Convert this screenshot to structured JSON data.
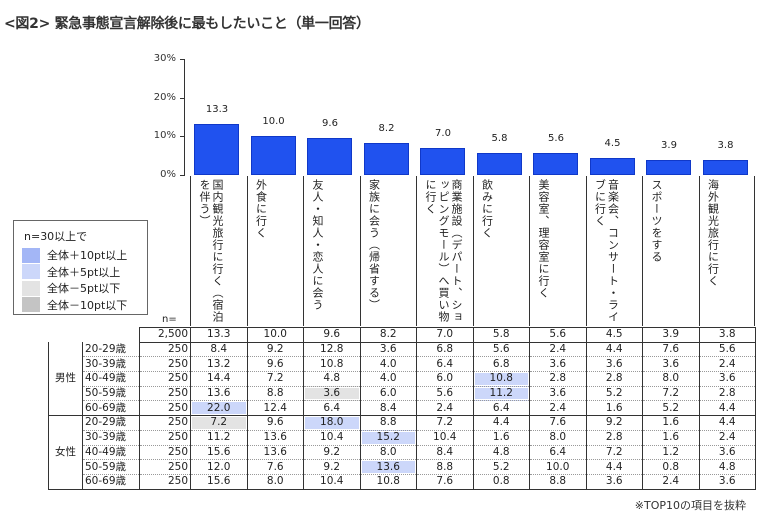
{
  "title": "<図2> 緊急事態宣言解除後に最もしたいこと（単一回答）",
  "note": "※TOP10の項目を抜粋",
  "legend": {
    "title": "n=30以上で",
    "items": [
      {
        "label": "全体＋10pt以上",
        "color": "#a3b6f6"
      },
      {
        "label": "全体＋5pt以上",
        "color": "#ccd7fa"
      },
      {
        "label": "全体－5pt以下",
        "color": "#e3e3e3"
      },
      {
        "label": "全体－10pt以下",
        "color": "#c4c4c4"
      }
    ]
  },
  "chart_data": {
    "type": "bar",
    "title": "<図2> 緊急事態宣言解除後に最もしたいこと（単一回答）",
    "categories": [
      "国内観光旅行に行く（宿泊を伴う）",
      "外食に行く",
      "友人・知人・恋人に会う",
      "家族に会う（帰省する）",
      "商業施設（デパート、ショッピングモール）へ買い物に行く",
      "飲みに行く",
      "美容室、理容室に行く",
      "音楽会、コンサート・ライブに行く",
      "スポーツをする",
      "海外観光旅行に行く"
    ],
    "values": [
      13.3,
      10.0,
      9.6,
      8.2,
      7.0,
      5.8,
      5.6,
      4.5,
      3.9,
      3.8
    ],
    "yticks": [
      "0%",
      "10%",
      "20%",
      "30%"
    ],
    "ylim": [
      0,
      30
    ],
    "bar_color": "#2052ef",
    "grid": false
  },
  "table": {
    "n_label": "n=",
    "total": {
      "n": "2,500",
      "values": [
        "13.3",
        "10.0",
        "9.6",
        "8.2",
        "7.0",
        "5.8",
        "5.6",
        "4.5",
        "3.9",
        "3.8"
      ]
    },
    "groups": [
      {
        "label": "男性",
        "rows": [
          {
            "age": "20-29歳",
            "n": "250",
            "values": [
              "8.4",
              "9.2",
              "12.8",
              "3.6",
              "6.8",
              "5.6",
              "2.4",
              "4.4",
              "7.6",
              "5.6"
            ],
            "levels": [
              0,
              0,
              0,
              0,
              0,
              0,
              0,
              0,
              0,
              0
            ]
          },
          {
            "age": "30-39歳",
            "n": "250",
            "values": [
              "13.2",
              "9.6",
              "10.8",
              "4.0",
              "6.4",
              "6.8",
              "3.6",
              "3.6",
              "3.6",
              "2.4"
            ],
            "levels": [
              0,
              0,
              0,
              0,
              0,
              0,
              0,
              0,
              0,
              0
            ]
          },
          {
            "age": "40-49歳",
            "n": "250",
            "values": [
              "14.4",
              "7.2",
              "4.8",
              "4.0",
              "6.0",
              "10.8",
              "2.8",
              "2.8",
              "8.0",
              "3.6"
            ],
            "levels": [
              0,
              0,
              0,
              0,
              0,
              5,
              0,
              0,
              0,
              0
            ]
          },
          {
            "age": "50-59歳",
            "n": "250",
            "values": [
              "13.6",
              "8.8",
              "3.6",
              "6.0",
              "5.6",
              "11.2",
              "3.6",
              "5.2",
              "7.2",
              "2.8"
            ],
            "levels": [
              0,
              0,
              -5,
              0,
              0,
              5,
              0,
              0,
              0,
              0
            ]
          },
          {
            "age": "60-69歳",
            "n": "250",
            "values": [
              "22.0",
              "12.4",
              "6.4",
              "8.4",
              "2.4",
              "6.4",
              "2.4",
              "1.6",
              "5.2",
              "4.4"
            ],
            "levels": [
              5,
              0,
              0,
              0,
              0,
              0,
              0,
              0,
              0,
              0
            ]
          }
        ]
      },
      {
        "label": "女性",
        "rows": [
          {
            "age": "20-29歳",
            "n": "250",
            "values": [
              "7.2",
              "9.6",
              "18.0",
              "8.8",
              "7.2",
              "4.4",
              "7.6",
              "9.2",
              "1.6",
              "4.4"
            ],
            "levels": [
              -5,
              0,
              5,
              0,
              0,
              0,
              0,
              0,
              0,
              0
            ]
          },
          {
            "age": "30-39歳",
            "n": "250",
            "values": [
              "11.2",
              "13.6",
              "10.4",
              "15.2",
              "10.4",
              "1.6",
              "8.0",
              "2.8",
              "1.6",
              "2.4"
            ],
            "levels": [
              0,
              0,
              0,
              5,
              0,
              0,
              0,
              0,
              0,
              0
            ]
          },
          {
            "age": "40-49歳",
            "n": "250",
            "values": [
              "15.6",
              "13.6",
              "9.2",
              "8.0",
              "8.4",
              "4.8",
              "6.4",
              "7.2",
              "1.2",
              "3.6"
            ],
            "levels": [
              0,
              0,
              0,
              0,
              0,
              0,
              0,
              0,
              0,
              0
            ]
          },
          {
            "age": "50-59歳",
            "n": "250",
            "values": [
              "12.0",
              "7.6",
              "9.2",
              "13.6",
              "8.8",
              "5.2",
              "10.0",
              "4.4",
              "0.8",
              "4.8"
            ],
            "levels": [
              0,
              0,
              0,
              5,
              0,
              0,
              0,
              0,
              0,
              0
            ]
          },
          {
            "age": "60-69歳",
            "n": "250",
            "values": [
              "15.6",
              "8.0",
              "10.4",
              "10.8",
              "7.6",
              "0.8",
              "8.8",
              "3.6",
              "2.4",
              "3.6"
            ],
            "levels": [
              0,
              0,
              0,
              0,
              0,
              0,
              0,
              0,
              0,
              0
            ]
          }
        ]
      }
    ]
  }
}
